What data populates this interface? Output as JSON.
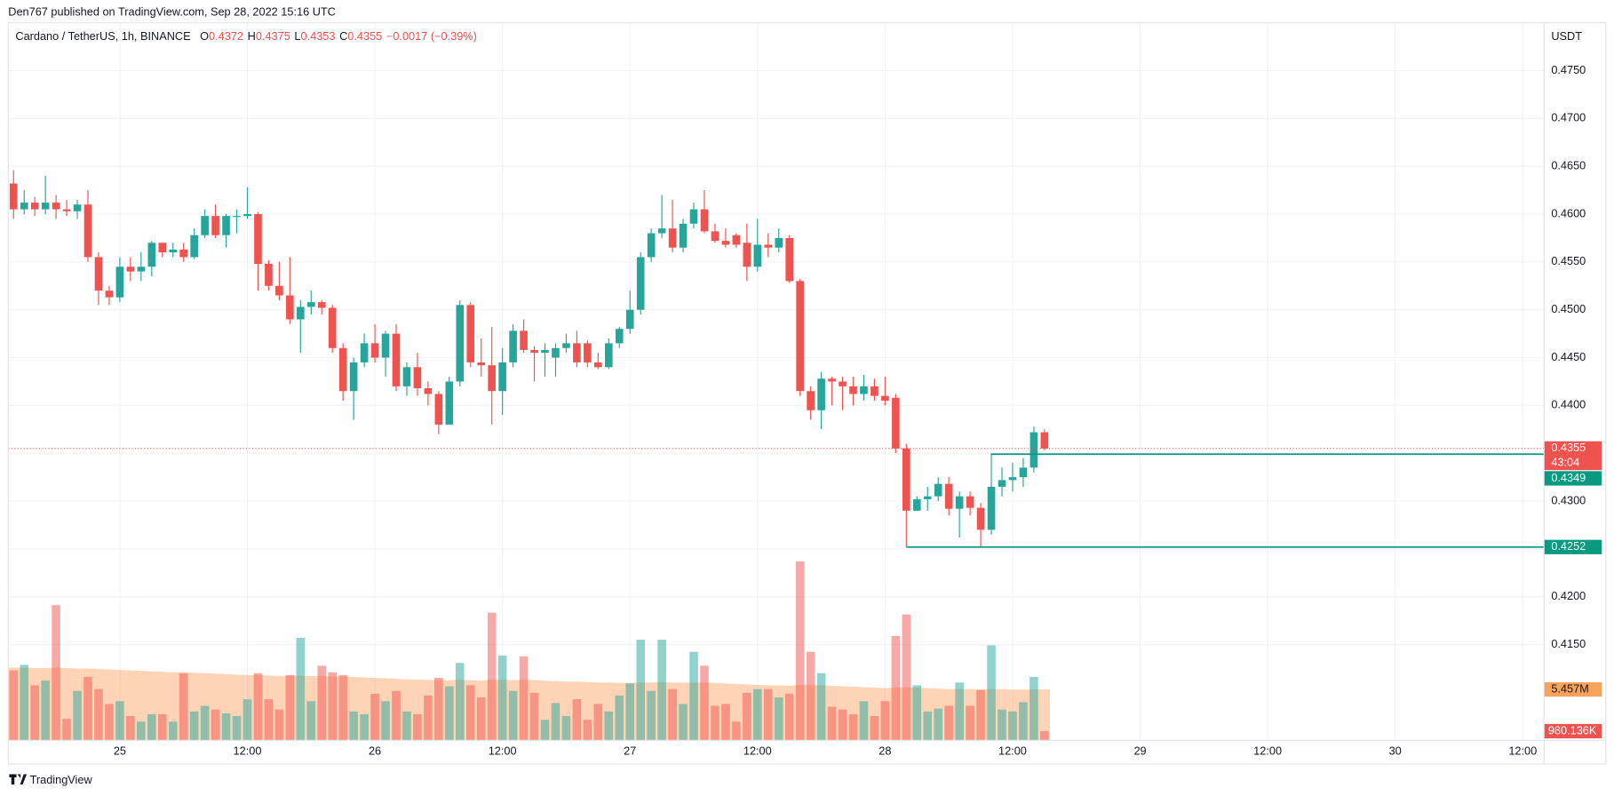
{
  "header": "Den767 published on TradingView.com, Sep 28, 2022 15:16 UTC",
  "footer": "TradingView",
  "chart_data": {
    "type": "candlestick",
    "title": "Cardano / TetherUS, 1h, BINANCE",
    "ohlc_legend": [
      "O",
      "H",
      "L",
      "C"
    ],
    "change": {
      "value": -0.0017,
      "label": "−0.0017 (−0.39%)"
    },
    "y_unit": "USDT",
    "x": [
      "24 14:00",
      "24 15:00",
      "24 16:00",
      "24 17:00",
      "24 18:00",
      "24 19:00",
      "24 20:00",
      "24 21:00",
      "24 22:00",
      "24 23:00",
      "25 00:00",
      "25 01:00",
      "25 02:00",
      "25 03:00",
      "25 04:00",
      "25 05:00",
      "25 06:00",
      "25 07:00",
      "25 08:00",
      "25 09:00",
      "25 10:00",
      "25 11:00",
      "25 12:00",
      "25 13:00",
      "25 14:00",
      "25 15:00",
      "25 16:00",
      "25 17:00",
      "25 18:00",
      "25 19:00",
      "25 20:00",
      "25 21:00",
      "25 22:00",
      "25 23:00",
      "26 00:00",
      "26 01:00",
      "26 02:00",
      "26 03:00",
      "26 04:00",
      "26 05:00",
      "26 06:00",
      "26 07:00",
      "26 08:00",
      "26 09:00",
      "26 10:00",
      "26 11:00",
      "26 12:00",
      "26 13:00",
      "26 14:00",
      "26 15:00",
      "26 16:00",
      "26 17:00",
      "26 18:00",
      "26 19:00",
      "26 20:00",
      "26 21:00",
      "26 22:00",
      "26 23:00",
      "27 00:00",
      "27 01:00",
      "27 02:00",
      "27 03:00",
      "27 04:00",
      "27 05:00",
      "27 06:00",
      "27 07:00",
      "27 08:00",
      "27 09:00",
      "27 10:00",
      "27 11:00",
      "27 12:00",
      "27 13:00",
      "27 14:00",
      "27 15:00",
      "27 16:00",
      "27 17:00",
      "27 18:00",
      "27 19:00",
      "27 20:00",
      "27 21:00",
      "27 22:00",
      "27 23:00",
      "28 00:00",
      "28 01:00",
      "28 02:00",
      "28 03:00",
      "28 04:00",
      "28 05:00",
      "28 06:00",
      "28 07:00",
      "28 08:00",
      "28 09:00",
      "28 10:00",
      "28 11:00",
      "28 12:00",
      "28 13:00",
      "28 14:00",
      "28 15:00"
    ],
    "open": [
      0.4632,
      0.4605,
      0.4612,
      0.4605,
      0.4612,
      0.4605,
      0.4603,
      0.461,
      0.4555,
      0.452,
      0.4513,
      0.4545,
      0.454,
      0.4545,
      0.457,
      0.456,
      0.4563,
      0.4555,
      0.4578,
      0.4598,
      0.4578,
      0.4598,
      0.4598,
      0.46,
      0.4548,
      0.4525,
      0.4515,
      0.449,
      0.4503,
      0.4508,
      0.4502,
      0.446,
      0.4415,
      0.4445,
      0.4465,
      0.445,
      0.4475,
      0.442,
      0.444,
      0.4418,
      0.4412,
      0.438,
      0.4425,
      0.4505,
      0.4445,
      0.4442,
      0.4415,
      0.4445,
      0.4478,
      0.4458,
      0.4455,
      0.445,
      0.446,
      0.4465,
      0.4465,
      0.4445,
      0.444,
      0.4465,
      0.448,
      0.45,
      0.4555,
      0.458,
      0.4585,
      0.4565,
      0.459,
      0.4605,
      0.4582,
      0.4572,
      0.4578,
      0.457,
      0.4545,
      0.4568,
      0.4565,
      0.4575,
      0.453,
      0.4415,
      0.4395,
      0.4428,
      0.4425,
      0.442,
      0.4412,
      0.442,
      0.441,
      0.4408,
      0.4355,
      0.429,
      0.4302,
      0.4305,
      0.4318,
      0.4292,
      0.4305,
      0.4293,
      0.427,
      0.4315,
      0.4322,
      0.4325,
      0.4335,
      0.4372
    ],
    "high": [
      0.4646,
      0.4625,
      0.4618,
      0.464,
      0.462,
      0.4615,
      0.4615,
      0.4625,
      0.456,
      0.4525,
      0.4555,
      0.4555,
      0.456,
      0.4572,
      0.457,
      0.457,
      0.457,
      0.4585,
      0.4605,
      0.461,
      0.46,
      0.4605,
      0.4628,
      0.4602,
      0.4552,
      0.455,
      0.4555,
      0.451,
      0.452,
      0.451,
      0.4505,
      0.4465,
      0.445,
      0.4475,
      0.4485,
      0.4478,
      0.4485,
      0.4445,
      0.4455,
      0.4425,
      0.4415,
      0.443,
      0.451,
      0.4508,
      0.447,
      0.4482,
      0.446,
      0.4485,
      0.449,
      0.4462,
      0.4465,
      0.4465,
      0.4475,
      0.4478,
      0.4468,
      0.4455,
      0.447,
      0.4482,
      0.452,
      0.456,
      0.4585,
      0.462,
      0.4615,
      0.4595,
      0.4612,
      0.4625,
      0.459,
      0.4585,
      0.458,
      0.459,
      0.4595,
      0.458,
      0.4585,
      0.4578,
      0.4532,
      0.442,
      0.4435,
      0.443,
      0.443,
      0.443,
      0.4432,
      0.4428,
      0.443,
      0.4412,
      0.436,
      0.4305,
      0.4315,
      0.4325,
      0.4325,
      0.431,
      0.431,
      0.4298,
      0.435,
      0.4335,
      0.434,
      0.4345,
      0.4378,
      0.4375
    ],
    "low": [
      0.4595,
      0.46,
      0.4598,
      0.46,
      0.4595,
      0.4598,
      0.4595,
      0.455,
      0.4505,
      0.4505,
      0.4508,
      0.453,
      0.453,
      0.4535,
      0.4555,
      0.4555,
      0.455,
      0.4553,
      0.4575,
      0.4575,
      0.4565,
      0.458,
      0.4595,
      0.452,
      0.452,
      0.451,
      0.4485,
      0.4455,
      0.4495,
      0.4495,
      0.4455,
      0.4405,
      0.4385,
      0.444,
      0.4445,
      0.443,
      0.4415,
      0.441,
      0.441,
      0.44,
      0.437,
      0.438,
      0.442,
      0.444,
      0.443,
      0.438,
      0.439,
      0.444,
      0.4455,
      0.4425,
      0.443,
      0.443,
      0.4455,
      0.444,
      0.444,
      0.4438,
      0.4438,
      0.446,
      0.4475,
      0.4495,
      0.455,
      0.4575,
      0.456,
      0.456,
      0.4585,
      0.458,
      0.457,
      0.4565,
      0.4565,
      0.453,
      0.454,
      0.4555,
      0.456,
      0.4528,
      0.441,
      0.4385,
      0.4375,
      0.44,
      0.4395,
      0.44,
      0.4405,
      0.4405,
      0.44,
      0.435,
      0.4252,
      0.429,
      0.429,
      0.43,
      0.4285,
      0.4262,
      0.4285,
      0.4252,
      0.4265,
      0.4305,
      0.431,
      0.4315,
      0.433,
      0.4353
    ],
    "close": [
      0.4605,
      0.4612,
      0.4605,
      0.4612,
      0.4605,
      0.4603,
      0.461,
      0.4555,
      0.452,
      0.4513,
      0.4545,
      0.454,
      0.4545,
      0.457,
      0.456,
      0.4563,
      0.4555,
      0.4578,
      0.4598,
      0.4578,
      0.4598,
      0.4598,
      0.46,
      0.4548,
      0.4525,
      0.4515,
      0.449,
      0.4503,
      0.4508,
      0.4502,
      0.446,
      0.4415,
      0.4445,
      0.4465,
      0.445,
      0.4475,
      0.442,
      0.444,
      0.4418,
      0.4412,
      0.438,
      0.4425,
      0.4505,
      0.4445,
      0.4442,
      0.4415,
      0.4445,
      0.4478,
      0.4458,
      0.4455,
      0.4458,
      0.446,
      0.4465,
      0.4445,
      0.4445,
      0.444,
      0.4465,
      0.448,
      0.45,
      0.4555,
      0.458,
      0.4585,
      0.4565,
      0.459,
      0.4605,
      0.4582,
      0.4572,
      0.4568,
      0.4568,
      0.4545,
      0.4568,
      0.4565,
      0.4575,
      0.453,
      0.4415,
      0.4395,
      0.4428,
      0.4425,
      0.442,
      0.4412,
      0.442,
      0.441,
      0.4405,
      0.4355,
      0.429,
      0.4302,
      0.4305,
      0.4318,
      0.4292,
      0.4305,
      0.4293,
      0.427,
      0.4315,
      0.4322,
      0.4325,
      0.4335,
      0.4372,
      0.4355
    ],
    "up_color": "#26a69a",
    "down_color": "#ef5350",
    "volume": {
      "values": [
        7500000,
        8100000,
        5900000,
        6400000,
        14500000,
        2300000,
        5300000,
        6800000,
        5500000,
        3900000,
        4200000,
        2600000,
        2000000,
        2800000,
        2800000,
        2000000,
        7200000,
        3100000,
        3700000,
        3300000,
        2900000,
        2600000,
        4400000,
        7200000,
        4400000,
        3300000,
        7000000,
        11000000,
        4200000,
        8000000,
        7300000,
        7000000,
        3100000,
        2800000,
        5000000,
        4200000,
        5300000,
        3100000,
        2800000,
        4800000,
        6700000,
        5800000,
        8300000,
        5900000,
        4600000,
        13700000,
        9100000,
        5300000,
        9000000,
        5100000,
        2200000,
        4000000,
        2600000,
        4400000,
        2200000,
        3900000,
        3100000,
        4800000,
        6100000,
        10800000,
        5300000,
        10800000,
        5500000,
        3900000,
        9500000,
        8000000,
        3700000,
        3900000,
        2000000,
        5100000,
        5500000,
        5500000,
        4600000,
        5000000,
        19200000,
        9500000,
        7200000,
        3600000,
        3300000,
        2800000,
        4200000,
        2600000,
        4200000,
        11200000,
        13500000,
        5900000,
        3100000,
        3400000,
        3700000,
        6200000,
        3700000,
        5400000,
        10200000,
        3300000,
        3100000,
        4100000,
        6800000,
        980136
      ],
      "last_label": "980.136K",
      "up_color": "rgba(38,166,154,0.5)",
      "down_color": "rgba(239,83,80,0.5)"
    },
    "volume_ma": {
      "values": [
        7800000,
        7800000,
        7750000,
        7750000,
        7800000,
        7750000,
        7700000,
        7700000,
        7650000,
        7600000,
        7550000,
        7500000,
        7450000,
        7400000,
        7350000,
        7300000,
        7300000,
        7250000,
        7200000,
        7150000,
        7100000,
        7050000,
        7000000,
        7000000,
        6950000,
        6900000,
        6900000,
        6950000,
        6900000,
        6900000,
        6850000,
        6850000,
        6800000,
        6750000,
        6700000,
        6650000,
        6600000,
        6550000,
        6500000,
        6500000,
        6450000,
        6450000,
        6500000,
        6450000,
        6400000,
        6500000,
        6500000,
        6450000,
        6500000,
        6450000,
        6400000,
        6350000,
        6300000,
        6300000,
        6250000,
        6200000,
        6200000,
        6150000,
        6150000,
        6200000,
        6200000,
        6250000,
        6200000,
        6200000,
        6200000,
        6200000,
        6150000,
        6100000,
        6050000,
        6000000,
        5950000,
        5900000,
        5900000,
        5850000,
        5950000,
        5950000,
        5900000,
        5850000,
        5800000,
        5750000,
        5700000,
        5650000,
        5600000,
        5650000,
        5700000,
        5650000,
        5600000,
        5550000,
        5500000,
        5500000,
        5500000,
        5450000,
        5500000,
        5500000,
        5450000,
        5450000,
        5450000,
        5457000
      ],
      "last_label": "5.457M",
      "color": "rgba(255,152,80,0.42)",
      "flag_color": "#f7a35c"
    },
    "volume_ylim": [
      0,
      77000000
    ],
    "xlim": [
      "24 13:30",
      "30 14:00"
    ],
    "xticks": [
      {
        "value": "25 00:00",
        "label": "25"
      },
      {
        "value": "25 12:00",
        "label": "12:00"
      },
      {
        "value": "26 00:00",
        "label": "26"
      },
      {
        "value": "26 12:00",
        "label": "12:00"
      },
      {
        "value": "27 00:00",
        "label": "27"
      },
      {
        "value": "27 12:00",
        "label": "12:00"
      },
      {
        "value": "28 00:00",
        "label": "28"
      },
      {
        "value": "28 12:00",
        "label": "12:00"
      },
      {
        "value": "29 00:00",
        "label": "29"
      },
      {
        "value": "29 12:00",
        "label": "12:00"
      },
      {
        "value": "30 00:00",
        "label": "30"
      },
      {
        "value": "30 12:00",
        "label": "12:00"
      }
    ],
    "ylim": [
      0.405,
      0.48
    ],
    "yticks": [
      {
        "value": 0.415,
        "label": "0.4150"
      },
      {
        "value": 0.42,
        "label": "0.4200"
      },
      {
        "value": 0.425,
        "label": "0.4250"
      },
      {
        "value": 0.43,
        "label": "0.4300"
      },
      {
        "value": 0.435,
        "label": "0.4350"
      },
      {
        "value": 0.44,
        "label": "0.4400"
      },
      {
        "value": 0.445,
        "label": "0.4450"
      },
      {
        "value": 0.45,
        "label": "0.4500"
      },
      {
        "value": 0.455,
        "label": "0.4550"
      },
      {
        "value": 0.46,
        "label": "0.4600"
      },
      {
        "value": 0.465,
        "label": "0.4650"
      },
      {
        "value": 0.47,
        "label": "0.4700"
      },
      {
        "value": 0.475,
        "label": "0.4750"
      }
    ],
    "grid": true,
    "countdown": "43:04",
    "levels": [
      {
        "value": 0.4349,
        "start": "28 10:00",
        "color": "#089981"
      },
      {
        "value": 0.4252,
        "start": "28 02:00",
        "color": "#089981"
      }
    ]
  }
}
